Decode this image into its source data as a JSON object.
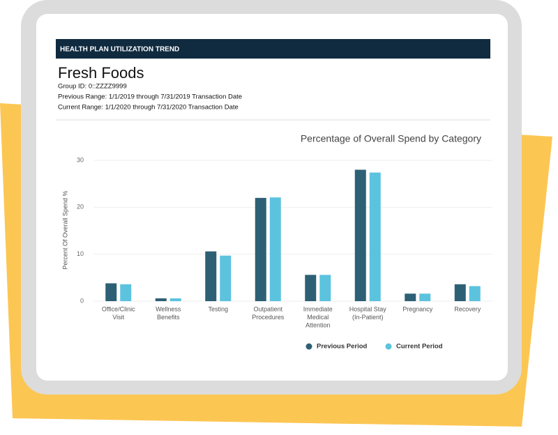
{
  "header": {
    "banner": "HEALTH PLAN UTILIZATION TREND",
    "title": "Fresh Foods",
    "lines": [
      "Group ID: 0::ZZZZ9999",
      "Previous Range: 1/1/2019 through 7/31/2019 Transaction Date",
      "Current Range: 1/1/2020 through 7/31/2020 Transaction Date"
    ]
  },
  "chart_data": {
    "type": "bar",
    "title": "Percentage of Overall Spend by Category",
    "y_label": "Percent Of Overall Spend %",
    "categories": [
      [
        "Office/Clinic",
        "Visit"
      ],
      [
        "Wellness",
        "Benefits"
      ],
      [
        "Testing"
      ],
      [
        "Outpatient",
        "Procedures"
      ],
      [
        "Immediate",
        "Medical",
        "Attention"
      ],
      [
        "Hospital Stay",
        "(In-Patient)"
      ],
      [
        "Pregnancy"
      ],
      [
        "Recovery"
      ]
    ],
    "series": [
      {
        "name": "Previous Period",
        "color": "#2d6075",
        "values": [
          3.8,
          0.6,
          10.6,
          22,
          5.6,
          28,
          1.6,
          3.6
        ]
      },
      {
        "name": "Current Period",
        "color": "#5cc3df",
        "values": [
          3.6,
          0.6,
          9.7,
          22.1,
          5.6,
          27.4,
          1.6,
          3.2
        ]
      }
    ],
    "ylim": [
      0,
      30
    ],
    "yticks": [
      0,
      10,
      20,
      30
    ],
    "grid": true,
    "legend": "bottom"
  }
}
